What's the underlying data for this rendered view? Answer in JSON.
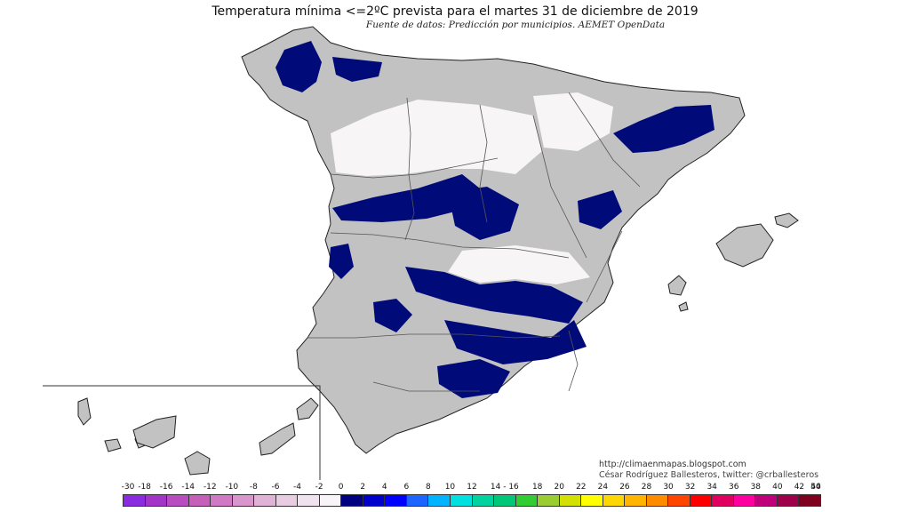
{
  "title": "Temperatura mínima <=2ºC prevista para el martes 31 de diciembre de 2019",
  "subtitle": "Fuente de datos: Predicción por municipios. AEMET OpenData",
  "credit": {
    "url": "http://climaenmapas.blogspot.com",
    "author": "César Rodríguez Ballesteros, twitter: @crballesteros"
  },
  "legend": {
    "labels": [
      "-30",
      "-18",
      "-16",
      "-14",
      "-12",
      "-10",
      "-8",
      "-6",
      "-4",
      "-2",
      "0",
      "2",
      "4",
      "6",
      "8",
      "10",
      "12",
      "14 - 16",
      "18",
      "20",
      "22",
      "24",
      "26",
      "28",
      "30",
      "32",
      "34",
      "36",
      "38",
      "40",
      "42",
      "44",
      "50"
    ],
    "colors": [
      "#8a2be2",
      "#a235c8",
      "#b84cc0",
      "#c65fba",
      "#d07ac6",
      "#d896cc",
      "#e0b2d6",
      "#e8cce2",
      "#f0e2ee",
      "#f8f4f8",
      "#000080",
      "#0000cd",
      "#0000ff",
      "#1e64ff",
      "#00b4ff",
      "#00e0e0",
      "#00d2a0",
      "#00c878",
      "#32cd32",
      "#9acd32",
      "#d4e000",
      "#ffff00",
      "#ffd700",
      "#ffb400",
      "#ff8c00",
      "#ff4500",
      "#ff0000",
      "#e00060",
      "#ff00a0",
      "#c0007a",
      "#a0004a",
      "#800020"
    ]
  },
  "map": {
    "land_color": "#c2c2c2",
    "cold_color": "#000a78",
    "plain_color": "#f7f5f6",
    "border_color": "#222222"
  }
}
